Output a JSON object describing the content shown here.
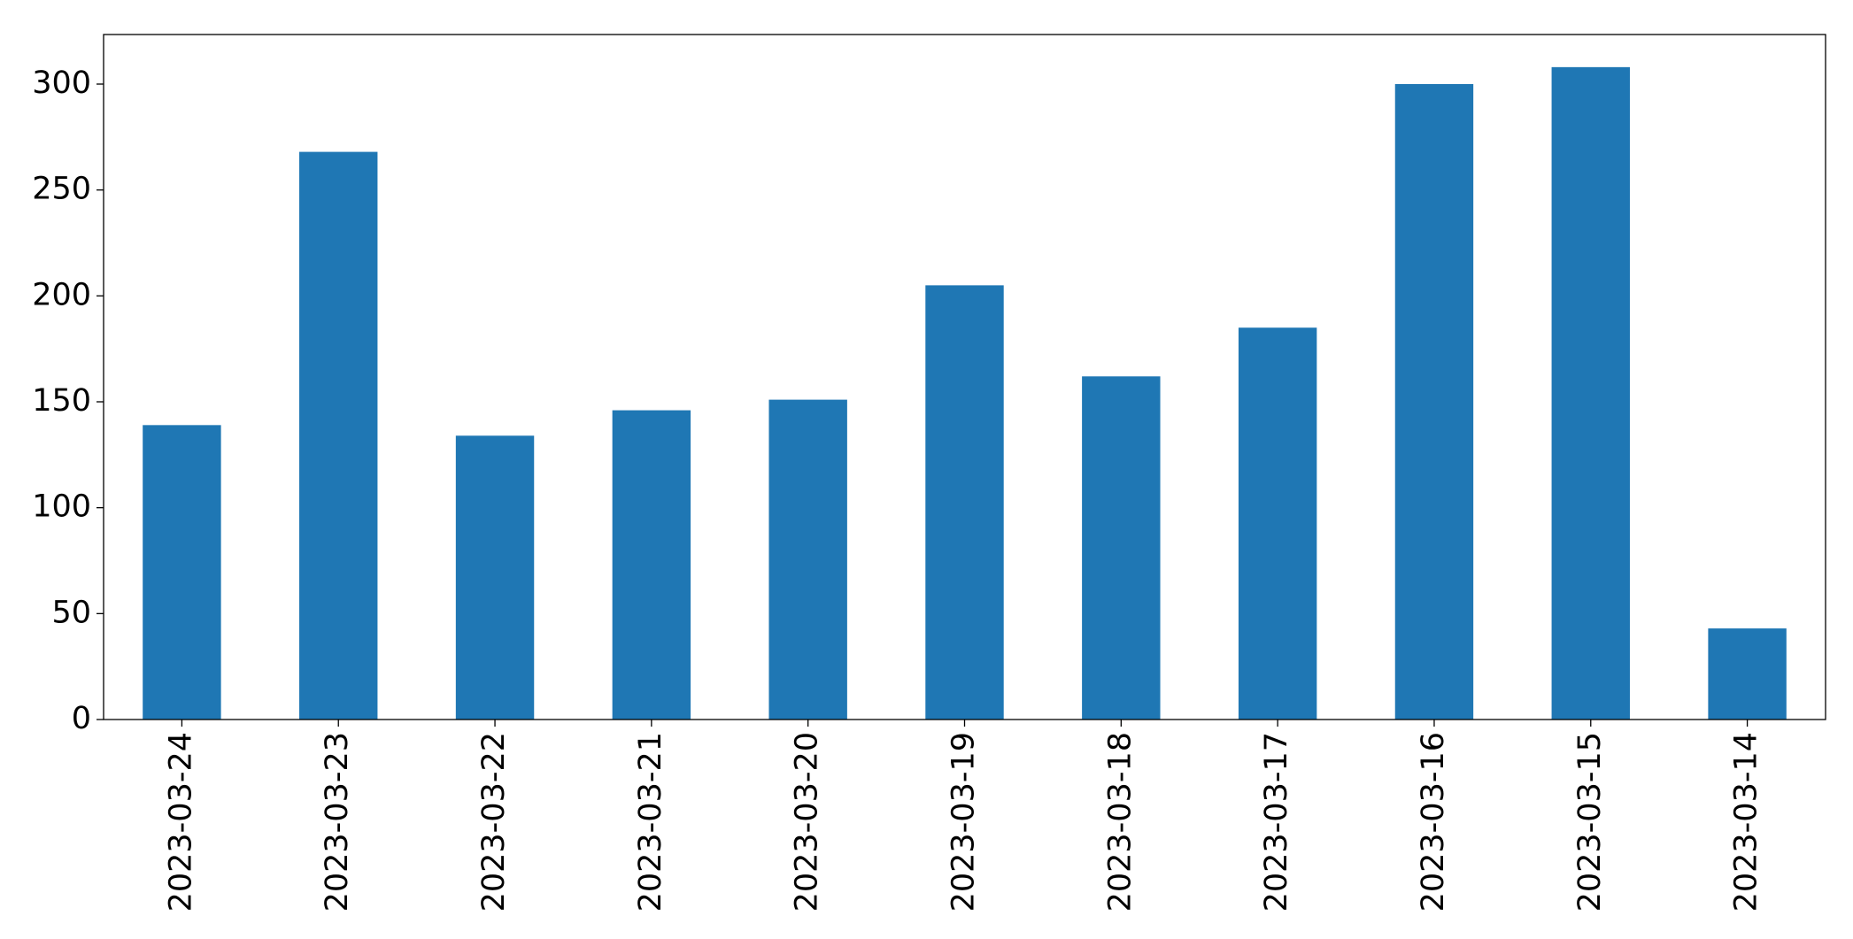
{
  "chart_data": {
    "type": "bar",
    "categories": [
      "2023-03-24",
      "2023-03-23",
      "2023-03-22",
      "2023-03-21",
      "2023-03-20",
      "2023-03-19",
      "2023-03-18",
      "2023-03-17",
      "2023-03-16",
      "2023-03-15",
      "2023-03-14"
    ],
    "values": [
      139,
      268,
      134,
      146,
      151,
      205,
      162,
      185,
      300,
      308,
      43
    ],
    "color": "#1f77b4",
    "ylim": [
      0,
      323.4
    ],
    "yticks": [
      0,
      50,
      100,
      150,
      200,
      250,
      300
    ],
    "grid": false
  }
}
